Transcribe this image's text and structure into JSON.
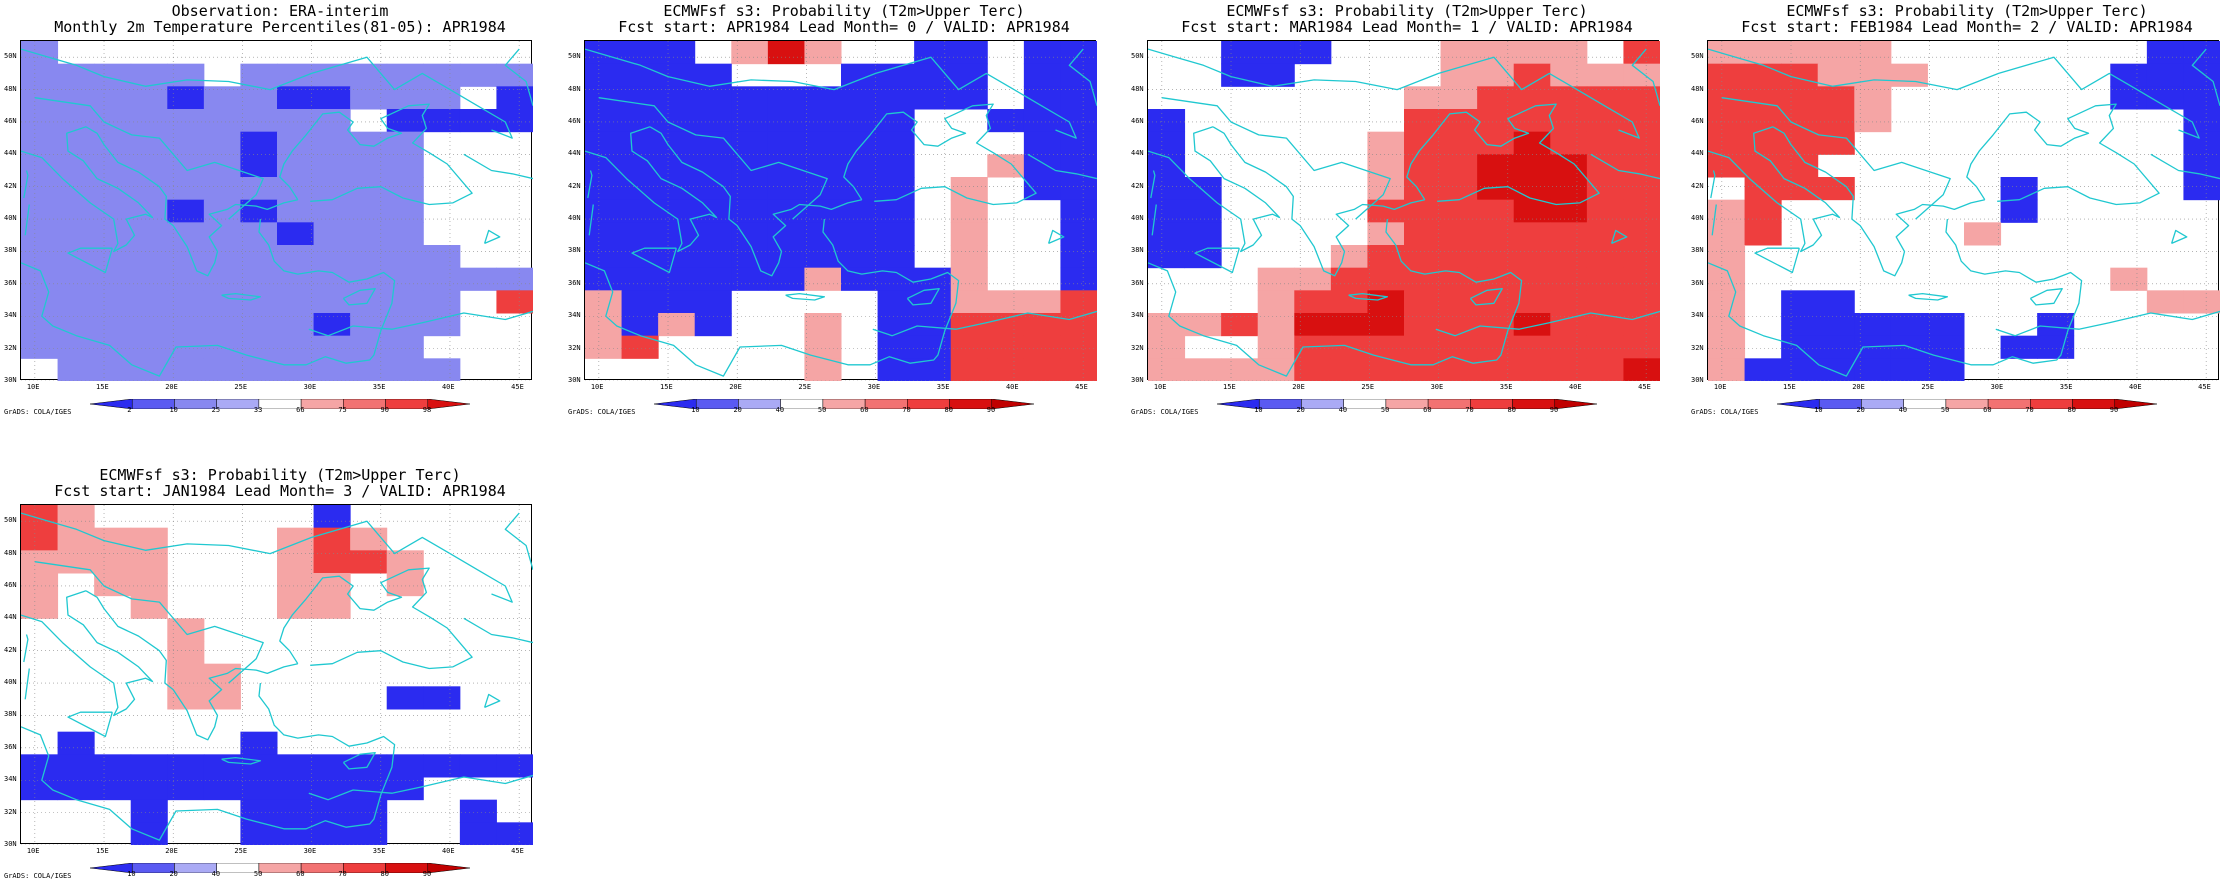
{
  "credit": "GrADS: COLA/IGES",
  "lon_labels": [
    "10E",
    "15E",
    "20E",
    "25E",
    "30E",
    "35E",
    "40E",
    "45E"
  ],
  "lat_labels": [
    "50N",
    "48N",
    "46N",
    "44N",
    "42N",
    "40N",
    "38N",
    "36N",
    "34N",
    "32N",
    "30N"
  ],
  "colors": {
    "deep_blue": "#2b2bf0",
    "blue": "#5a5af2",
    "light_blue": "#8888f0",
    "pale_blue": "#aaaaf5",
    "white": "#ffffff",
    "pale_red": "#f5a5a5",
    "light_red": "#f27272",
    "red": "#ee3e3e",
    "deep_red": "#d81010",
    "coast": "#20c8d0"
  },
  "obs_colorbar": {
    "labels": [
      "2",
      "10",
      "25",
      "33",
      "66",
      "75",
      "90",
      "98"
    ],
    "colors": [
      "#2b2bf0",
      "#5a5af2",
      "#8888f0",
      "#aaaaf5",
      "#ffffff",
      "#f5a5a5",
      "#f27272",
      "#ee3e3e",
      "#d81010"
    ]
  },
  "prob_colorbar": {
    "labels": [
      "10",
      "20",
      "40",
      "50",
      "60",
      "70",
      "80",
      "90"
    ],
    "colors": [
      "#2b2bf0",
      "#5a5af2",
      "#aaaaf5",
      "#ffffff",
      "#f5a5a5",
      "#f27272",
      "#ee3e3e",
      "#d81010",
      "#c00000"
    ]
  },
  "panels": [
    {
      "title1": "Observation: ERA-interim",
      "title2": "Monthly 2m Temperature Percentiles(81-05): APR1984",
      "colorbar": "obs",
      "grid": [
        "bWWWWWWWWWWWWW",
        "bbbbbWbbbbbbbb",
        "bbbbBbbBBbbbWB",
        "bbbbbbbbbWBBBB",
        "bbbbbbBbbbbWWW",
        "bbbbbbBbbbbWWW",
        "bbbbbbbbbbbWWW",
        "bbbbBbBbbbbWWW",
        "bbbbbbbBbbbWWW",
        "bbbbbbbbbbbbWW",
        "bbbbbbbbbbbbbb",
        "bbbbbbbbbbbbWr",
        "bbbbbbbbBbbbWW",
        "bbbbbbbbbbbWWW",
        "WbbbbbbbbbbbWW"
      ]
    },
    {
      "title1": "ECMWFsf s3: Probability (T2m>Upper Terc)",
      "title2": "Fcst start: APR1984  Lead Month= 0 / VALID: APR1984",
      "colorbar": "prob",
      "grid": [
        "BBBWpRpWWBBWBB",
        "BBBBWWWBBBBWBB",
        "BBBBBBBBBBBWBB",
        "BBBBBBBBBWWBBB",
        "BBBBBBBBBWWWBB",
        "BBBBBBBBBWWpBB",
        "BBBBBBBBBWpWBB",
        "BBBBBBBBBWpWWB",
        "BBBBBBBBBWpWWB",
        "BBBBBBBBBWpWWB",
        "BBBBBBpBBBpWWB",
        "pBBBWWWWBBpppr",
        "pBpBWWpWBBrrrr",
        "prWWWWpWBBrrrr",
        "WWWWWWpWBBrrrr"
      ]
    },
    {
      "title1": "ECMWFsf s3: Probability (T2m>Upper Terc)",
      "title2": "Fcst start: MAR1984  Lead Month= 1 / VALID: APR1984",
      "colorbar": "prob",
      "grid": [
        "WWBBBWWWppppWr",
        "WWBBWWWWpprppp",
        "WWWWWWWpprrrrr",
        "BWWWWWWrrrrrrr",
        "BWWWWWprrrRrrr",
        "BWWWWWprrRRRrr",
        "BBWWWWprrRRRrr",
        "BBWWWWrrrrRRrr",
        "BBWWWWprrrrrrr",
        "BBWWWprrrrrrrr",
        "WWWpprrrrrrrrr",
        "WWWprrRrrrrrrr",
        "pprpRRRrrrRrrr",
        "pWWprrrrrrrrrr",
        "pppprrrrrrrrrR"
      ]
    },
    {
      "title1": "ECMWFsf s3: Probability (T2m>Upper Terc)",
      "title2": "Fcst start: FEB1984  Lead Month= 2 / VALID: APR1984",
      "colorbar": "prob",
      "grid": [
        "pppppWWWWWWWBB",
        "rrrpppWWWWWBBB",
        "rrrrpWWWWWWBBB",
        "rrrrpWWWWWWWWB",
        "rrrrWWWWWWWWWB",
        "rrrWWWWWWWWWWB",
        "WrrrWWWWBWWWWB",
        "prWWWWWWBWWWWW",
        "prWWWWWpWWWWWW",
        "pWWWWWWWWWWWWW",
        "pWWWWWWWWWWpWW",
        "pWBBWWWWWWWWpp",
        "pWBBBBBWWBWWWW",
        "pWBBBBBWBBWWWW",
        "pBBBBBBWWWWWWW"
      ]
    },
    {
      "title1": "ECMWFsf s3: Probability (T2m>Upper Terc)",
      "title2": "Fcst start: JAN1984  Lead Month= 3 / VALID: APR1984",
      "colorbar": "prob",
      "grid": [
        "rpWWWWWWBWWWWW",
        "rpppWWWprpWWWW",
        "ppppWWWprrpWWW",
        "pWppWWWppWpWWW",
        "pWWpWWWppWWWWW",
        "WWWWpWWWWWWWWW",
        "WWWWpWWWWWWWWW",
        "WWWWppWWWWWWWW",
        "WWWWppWWWWBBWW",
        "WWWWWWWWWWWWWW",
        "WBWWWWBWWWWWWW",
        "BBBBBBBBBBBBBB",
        "BBBBBBBBBBBWWW",
        "WWWBWWBBBBWWBW",
        "WWWBWWBBBBWWBB"
      ]
    }
  ]
}
